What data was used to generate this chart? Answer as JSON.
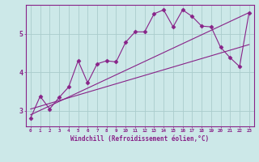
{
  "xlabel": "Windchill (Refroidissement éolien,°C)",
  "background_color": "#cce8e8",
  "line_color": "#882288",
  "grid_color": "#aacccc",
  "xlim": [
    -0.5,
    23.5
  ],
  "ylim": [
    2.6,
    5.75
  ],
  "ytick_values": [
    3,
    4,
    5
  ],
  "line1_x": [
    0,
    1,
    2,
    3,
    4,
    5,
    6,
    7,
    8,
    9,
    10,
    11,
    12,
    13,
    14,
    15,
    16,
    17,
    18,
    19,
    20,
    21,
    22,
    23
  ],
  "line1_y": [
    2.82,
    3.38,
    3.05,
    3.35,
    3.62,
    4.3,
    3.73,
    4.22,
    4.3,
    4.27,
    4.78,
    5.05,
    5.05,
    5.52,
    5.62,
    5.18,
    5.62,
    5.45,
    5.2,
    5.18,
    4.65,
    4.38,
    4.15,
    5.55
  ],
  "line2_x": [
    0,
    23
  ],
  "line2_y": [
    2.9,
    5.55
  ],
  "line3_x": [
    0,
    23
  ],
  "line3_y": [
    3.05,
    4.72
  ],
  "marker": "D",
  "markersize": 2.5,
  "linewidth": 0.8
}
